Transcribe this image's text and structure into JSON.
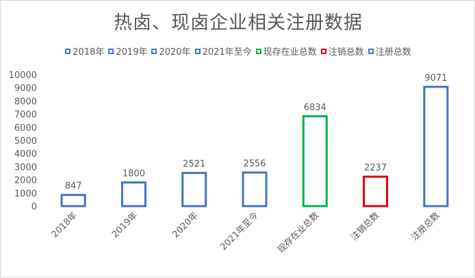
{
  "chart_data": {
    "type": "bar",
    "title": "热卤、现卤企业相关注册数据",
    "categories": [
      "2018年",
      "2019年",
      "2020年",
      "2021年至今",
      "现存在业总数",
      "注销总数",
      "注册总数"
    ],
    "values": [
      847,
      1800,
      2521,
      2556,
      6834,
      2237,
      9071
    ],
    "colors": [
      "#4472c4",
      "#4472c4",
      "#4472c4",
      "#4472c4",
      "#00b050",
      "#e00000",
      "#4472c4"
    ],
    "legend": [
      "2018年",
      "2019年",
      "2020年",
      "2021年至今",
      "现存在业总数",
      "注销总数",
      "注册总数"
    ],
    "legend_position": "top",
    "ylim": [
      0,
      10000
    ],
    "yticks": [
      0,
      1000,
      2000,
      3000,
      4000,
      5000,
      6000,
      7000,
      8000,
      9000,
      10000
    ],
    "grid": false,
    "bar_style": "outline",
    "data_labels": true
  }
}
